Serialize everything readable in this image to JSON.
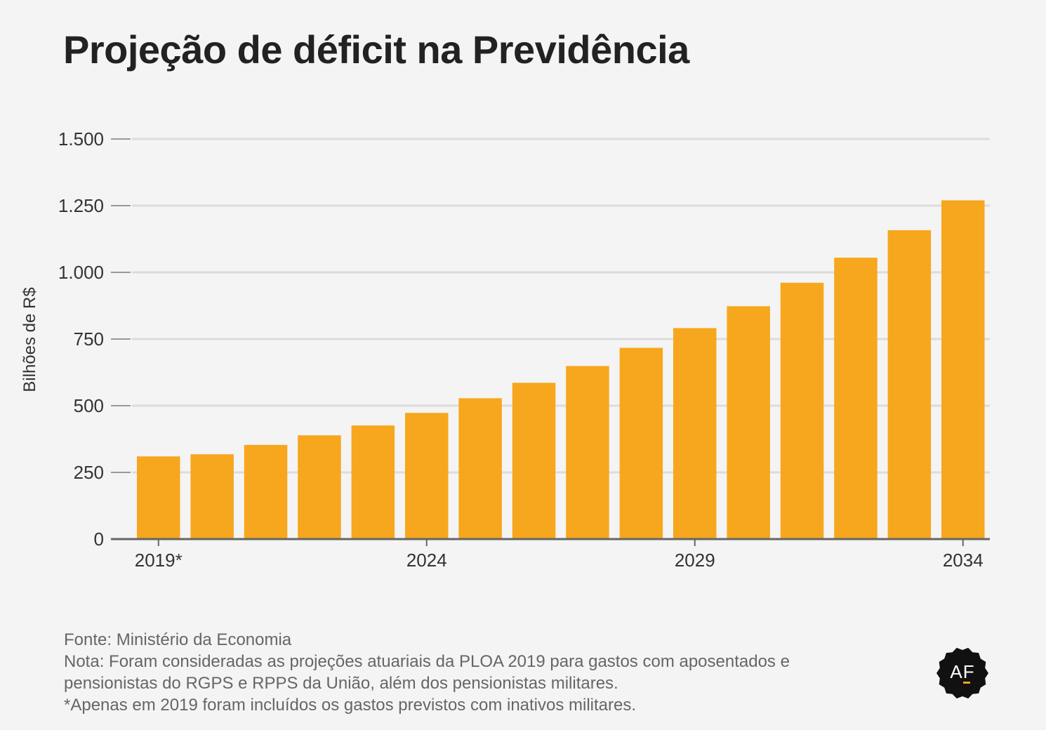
{
  "title": "Projeção de déficit na Previdência",
  "chart_data": {
    "type": "bar",
    "categories": [
      "2019*",
      "2020",
      "2021",
      "2022",
      "2023",
      "2024",
      "2025",
      "2026",
      "2027",
      "2028",
      "2029",
      "2030",
      "2031",
      "2032",
      "2033",
      "2034"
    ],
    "values": [
      310,
      318,
      353,
      389,
      426,
      473,
      528,
      586,
      649,
      717,
      791,
      873,
      961,
      1055,
      1158,
      1270
    ],
    "xtick_labels": [
      "2019*",
      "2024",
      "2029",
      "2034"
    ],
    "xtick_categories": [
      "2019*",
      "2024",
      "2029",
      "2034"
    ],
    "ylabel": "Bilhões de R$",
    "yticks": [
      0,
      250,
      500,
      750,
      1000,
      1250,
      1500
    ],
    "ytick_labels": [
      "0",
      "250",
      "500",
      "750",
      "1.000",
      "1.250",
      "1.500"
    ],
    "ylim": [
      0,
      1500
    ],
    "grid": true,
    "bar_color": "#f7a71d"
  },
  "footer": {
    "source": "Fonte: Ministério da Economia",
    "note_line1": "Nota: Foram consideradas as projeções atuariais da PLOA 2019 para gastos com aposentados e",
    "note_line2": "pensionistas do RGPS e RPPS da União, além dos pensionistas militares.",
    "note_line3": "*Apenas em 2019 foram incluídos os gastos previstos com inativos militares."
  },
  "logo": {
    "text": "AF",
    "color": "#111111",
    "accent": "#f5a31d"
  }
}
